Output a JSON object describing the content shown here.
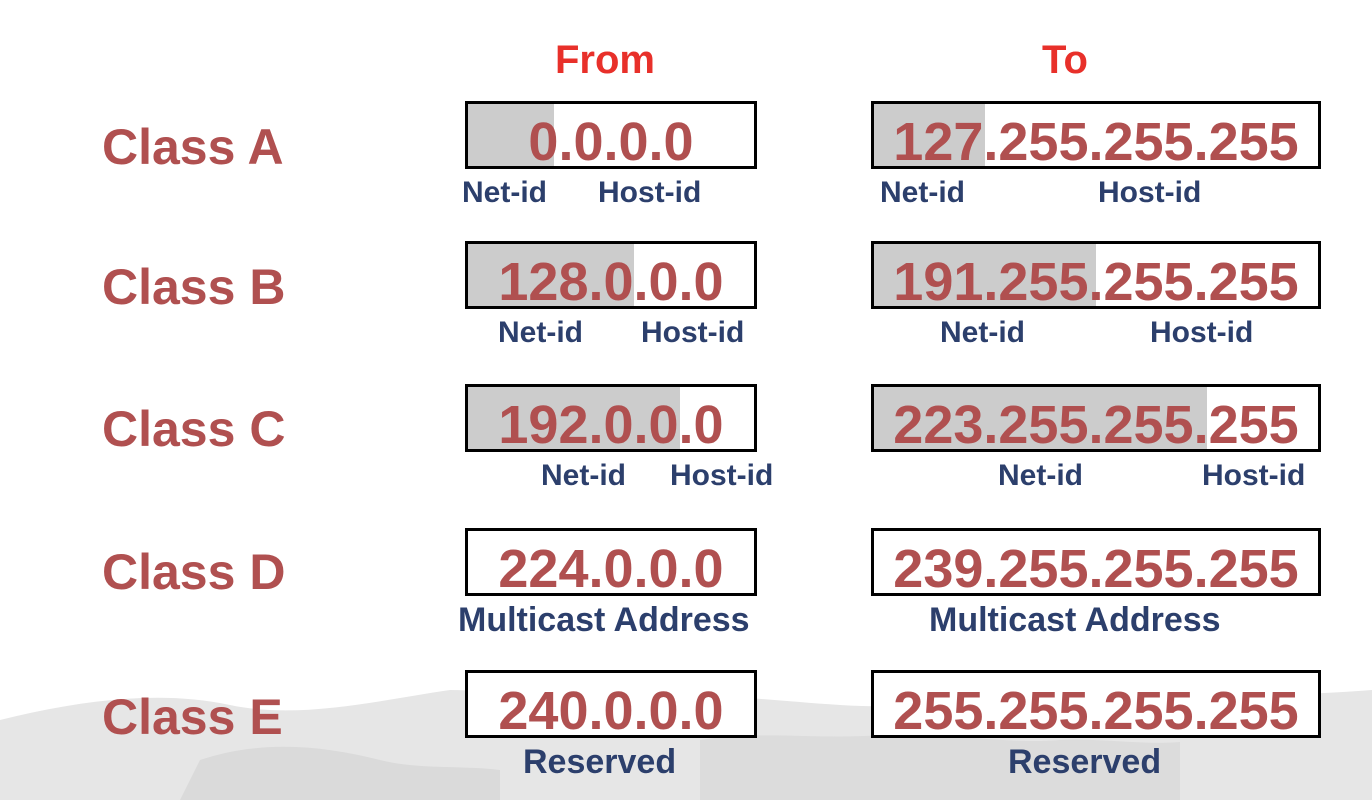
{
  "headers": {
    "from": "From",
    "to": "To"
  },
  "colors": {
    "header": "#e8302a",
    "class": "#b05050",
    "address": "#b05050",
    "sub": "#2c3f6c",
    "shade": "#cccccc"
  },
  "rows": [
    {
      "label": "Class A",
      "from": {
        "address": "0.0.0.0",
        "net_fraction": 0.3,
        "labels": [
          "Net-id",
          "Host-id"
        ]
      },
      "to": {
        "address": "127.255.255.255",
        "net_fraction": 0.25,
        "labels": [
          "Net-id",
          "Host-id"
        ]
      }
    },
    {
      "label": "Class B",
      "from": {
        "address": "128.0.0.0",
        "net_fraction": 0.58,
        "labels": [
          "Net-id",
          "Host-id"
        ]
      },
      "to": {
        "address": "191.255.255.255",
        "net_fraction": 0.5,
        "labels": [
          "Net-id",
          "Host-id"
        ]
      }
    },
    {
      "label": "Class C",
      "from": {
        "address": "192.0.0.0",
        "net_fraction": 0.74,
        "labels": [
          "Net-id",
          "Host-id"
        ]
      },
      "to": {
        "address": "223.255.255.255",
        "net_fraction": 0.75,
        "labels": [
          "Net-id",
          "Host-id"
        ]
      }
    },
    {
      "label": "Class D",
      "from": {
        "address": "224.0.0.0",
        "net_fraction": 0,
        "labels": [
          "Multicast Address"
        ]
      },
      "to": {
        "address": "239.255.255.255",
        "net_fraction": 0,
        "labels": [
          "Multicast Address"
        ]
      }
    },
    {
      "label": "Class E",
      "from": {
        "address": "240.0.0.0",
        "net_fraction": 0,
        "labels": [
          "Reserved"
        ]
      },
      "to": {
        "address": "255.255.255.255",
        "net_fraction": 0,
        "labels": [
          "Reserved"
        ]
      }
    }
  ]
}
